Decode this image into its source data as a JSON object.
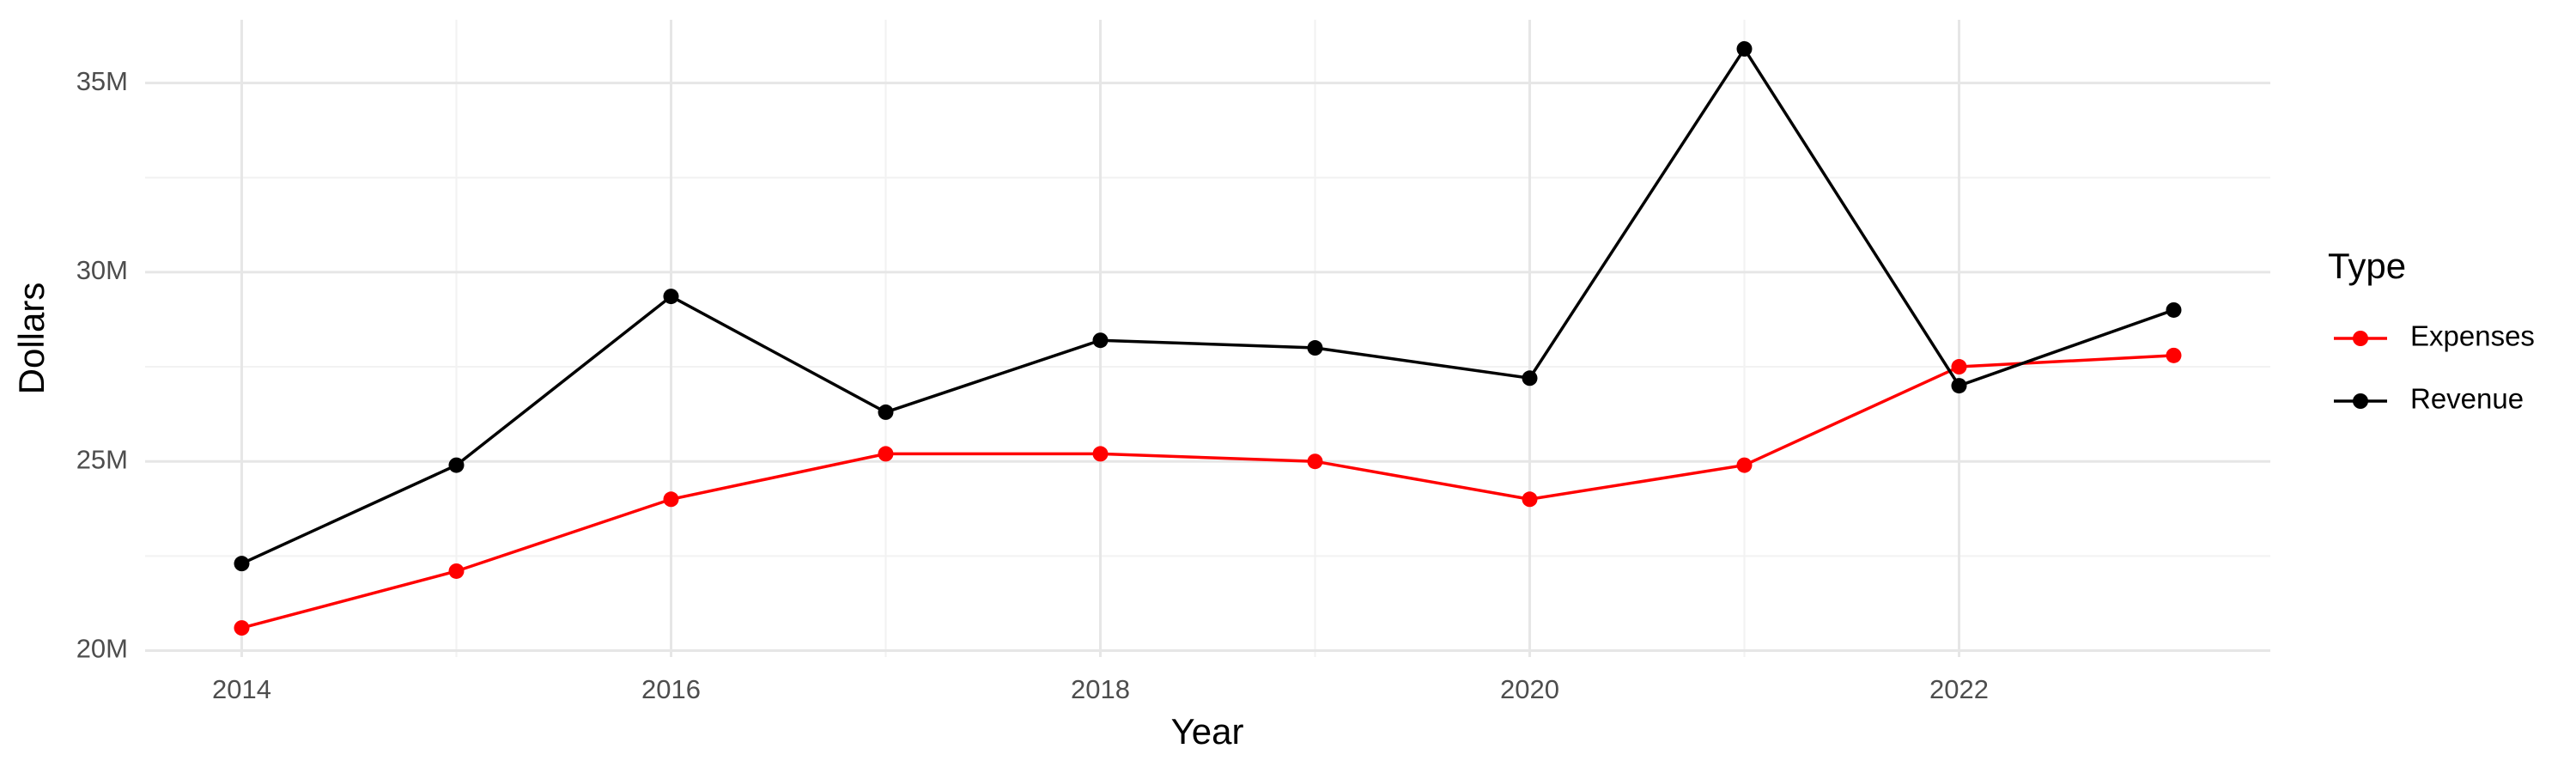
{
  "chart_data": {
    "type": "line",
    "x_label": "Year",
    "y_label": "Dollars",
    "legend_title": "Type",
    "x": [
      2014,
      2015,
      2016,
      2017,
      2018,
      2019,
      2020,
      2021,
      2022,
      2023
    ],
    "series": [
      {
        "name": "Expenses",
        "color": "#ff0000",
        "values": [
          20600000,
          22100000,
          24000000,
          25200000,
          25200000,
          25000000,
          24000000,
          24900000,
          27500000,
          27800000
        ]
      },
      {
        "name": "Revenue",
        "color": "#000000",
        "values": [
          22300000,
          24900000,
          29360000,
          26300000,
          28200000,
          28000000,
          27200000,
          35900000,
          27000000,
          29000000
        ]
      }
    ],
    "xlim": [
      2013.55,
      2023.45
    ],
    "xticks": [
      2014,
      2016,
      2018,
      2020,
      2022
    ],
    "ylim": [
      19830000,
      36670000
    ],
    "yticks": [
      {
        "value": 20000000,
        "label": "20M"
      },
      {
        "value": 25000000,
        "label": "25M"
      },
      {
        "value": 30000000,
        "label": "30M"
      },
      {
        "value": 35000000,
        "label": "35M"
      }
    ],
    "grid": true,
    "legend_position": "right"
  }
}
